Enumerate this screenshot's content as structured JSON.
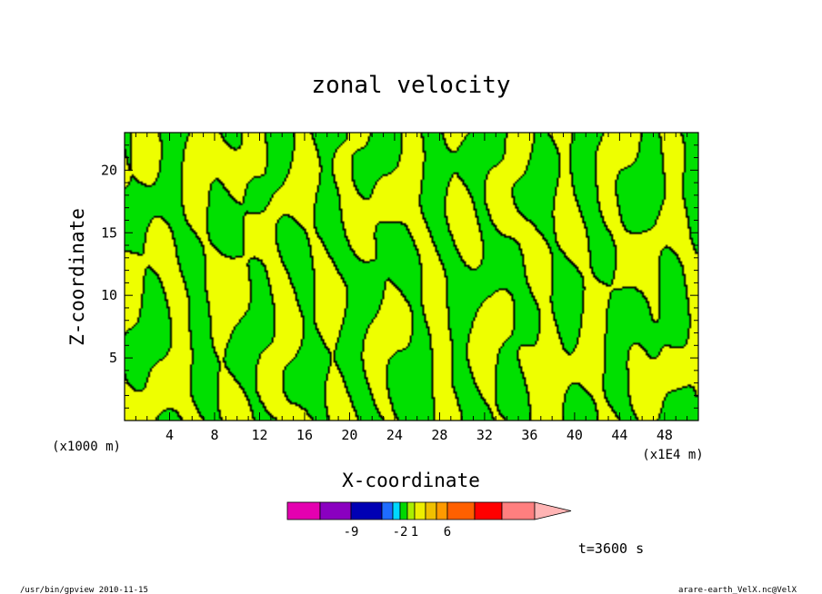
{
  "chart_data": {
    "type": "heatmap",
    "title": "zonal velocity",
    "xlabel": "X-coordinate",
    "ylabel": "Z-coordinate",
    "x_unit": "(x1E4 m)",
    "y_unit": "(x1000 m)",
    "x_ticks": [
      4,
      8,
      12,
      16,
      20,
      24,
      28,
      32,
      36,
      40,
      44,
      48
    ],
    "y_ticks": [
      5,
      10,
      15,
      20
    ],
    "xlim": [
      0,
      51
    ],
    "ylim": [
      0,
      23
    ],
    "grid": false,
    "colorbar": {
      "colors": [
        "#e400b0",
        "#8a00c0",
        "#0000b4",
        "#1e6cff",
        "#00d8ff",
        "#00d800",
        "#aaee00",
        "#eeee00",
        "#f0c000",
        "#ff9a00",
        "#ff6000",
        "#ff0000",
        "#ff7f7f",
        "#ffb4b4"
      ],
      "labels": [
        {
          "text": "-9",
          "index": 2
        },
        {
          "text": "-2",
          "index": 5
        },
        {
          "text": "1",
          "index": 7
        },
        {
          "text": "6",
          "index": 10
        }
      ]
    },
    "field_colors": {
      "negative": "#00e000",
      "positive": "#eeff00",
      "contour": "#000000"
    }
  },
  "time_label": "t=3600 s",
  "footer": {
    "left": "/usr/bin/gpview   2010-11-15",
    "right": "arare-earth_VelX.nc@VelX"
  }
}
